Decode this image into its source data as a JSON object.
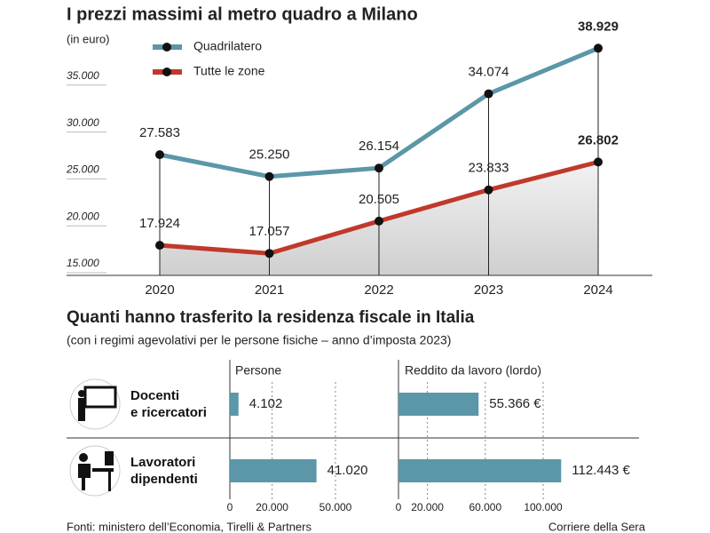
{
  "chart_data": [
    {
      "type": "line",
      "title": "I prezzi massimi al metro quadro a Milano",
      "subtitle": "(in euro)",
      "categories": [
        "2020",
        "2021",
        "2022",
        "2023",
        "2024"
      ],
      "series": [
        {
          "name": "Quadrilatero",
          "color": "#5b97a8",
          "values": [
            27583,
            25250,
            26154,
            34074,
            38929
          ],
          "value_labels": [
            "27.583",
            "25.250",
            "26.154",
            "34.074",
            "38.929"
          ]
        },
        {
          "name": "Tutte le zone",
          "color": "#c0392b",
          "values": [
            17924,
            17057,
            20505,
            23833,
            26802
          ],
          "value_labels": [
            "17.924",
            "17.057",
            "20.505",
            "23.833",
            "26.802"
          ]
        }
      ],
      "ylim": [
        15000,
        40000
      ],
      "yticks": [
        {
          "value": 15000,
          "label": "15.000"
        },
        {
          "value": 20000,
          "label": "20.000"
        },
        {
          "value": 25000,
          "label": "25.000"
        },
        {
          "value": 30000,
          "label": "30.000"
        },
        {
          "value": 35000,
          "label": "35.000"
        }
      ],
      "legend": "top-left"
    },
    {
      "type": "hbar",
      "title": "Quanti hanno trasferito la residenza fiscale in Italia",
      "subtitle": "(con i regimi agevolativi per le persone fisiche – anno d’imposta 2023)",
      "label": "Persone",
      "categories": [
        "Docenti\ne ricercatori",
        "Lavoratori\ndipendenti"
      ],
      "values": [
        4102,
        41020
      ],
      "value_labels": [
        "4.102",
        "41.020"
      ],
      "color": "#5b97a8",
      "xlim": [
        0,
        75000
      ],
      "xticks": [
        0,
        {
          "value": 20000,
          "label": "20.000"
        },
        {
          "value": 50000,
          "label": "50.000"
        }
      ]
    },
    {
      "type": "hbar",
      "label": "Reddito da lavoro (lordo)",
      "values": [
        55366,
        112443
      ],
      "value_labels": [
        "55.366 €",
        "112.443 €"
      ],
      "color": "#5b97a8",
      "xlim": [
        0,
        166000
      ],
      "xticks": [
        0,
        {
          "value": 20000,
          "label": "20.000"
        },
        {
          "value": 60000,
          "label": "60.000"
        },
        {
          "value": 100000,
          "label": "100.000"
        }
      ]
    }
  ],
  "footer": {
    "source": "Fonti: ministero dell’Economia, Tirelli & Partners",
    "credit": "Corriere della Sera"
  }
}
